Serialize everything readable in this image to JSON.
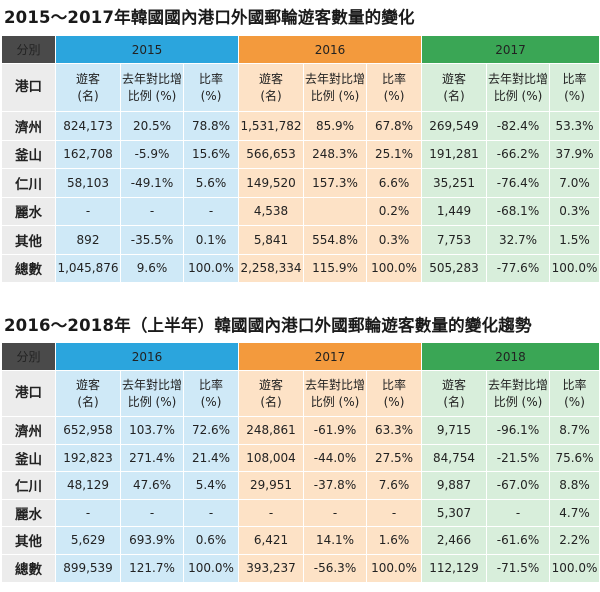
{
  "table1": {
    "title": "2015～2017年韓國國內港口外國郵輪遊客數量的變化",
    "corner": "分別",
    "port_label": "港口",
    "years": [
      "2015",
      "2016",
      "2017"
    ],
    "col_headers": {
      "visitors": "遊客\n(名)",
      "yoy": "去年對比增\n比例 (%)",
      "ratio": "比率\n(%)"
    },
    "rows": [
      {
        "port": "濟州",
        "cells": [
          "824,173",
          "20.5%",
          "78.8%",
          "1,531,782",
          "85.9%",
          "67.8%",
          "269,549",
          "-82.4%",
          "53.3%"
        ]
      },
      {
        "port": "釜山",
        "cells": [
          "162,708",
          "-5.9%",
          "15.6%",
          "566,653",
          "248.3%",
          "25.1%",
          "191,281",
          "-66.2%",
          "37.9%"
        ]
      },
      {
        "port": "仁川",
        "cells": [
          "58,103",
          "-49.1%",
          "5.6%",
          "149,520",
          "157.3%",
          "6.6%",
          "35,251",
          "-76.4%",
          "7.0%"
        ]
      },
      {
        "port": "麗水",
        "cells": [
          "-",
          "-",
          "-",
          "4,538",
          "",
          "0.2%",
          "1,449",
          "-68.1%",
          "0.3%"
        ]
      },
      {
        "port": "其他",
        "cells": [
          "892",
          "-35.5%",
          "0.1%",
          "5,841",
          "554.8%",
          "0.3%",
          "7,753",
          "32.7%",
          "1.5%"
        ]
      },
      {
        "port": "總數",
        "cells": [
          "1,045,876",
          "9.6%",
          "100.0%",
          "2,258,334",
          "115.9%",
          "100.0%",
          "505,283",
          "-77.6%",
          "100.0%"
        ]
      }
    ]
  },
  "table2": {
    "title": "2016～2018年（上半年）韓國國內港口外國郵輪遊客數量的變化趨勢",
    "corner": "分別",
    "port_label": "港口",
    "years": [
      "2016",
      "2017",
      "2018"
    ],
    "col_headers": {
      "visitors": "遊客\n(名)",
      "yoy": "去年對比增\n比例 (%)",
      "ratio": "比率\n(%)"
    },
    "rows": [
      {
        "port": "濟州",
        "cells": [
          "652,958",
          "103.7%",
          "72.6%",
          "248,861",
          "-61.9%",
          "63.3%",
          "9,715",
          "-96.1%",
          "8.7%"
        ]
      },
      {
        "port": "釜山",
        "cells": [
          "192,823",
          "271.4%",
          "21.4%",
          "108,004",
          "-44.0%",
          "27.5%",
          "84,754",
          "-21.5%",
          "75.6%"
        ]
      },
      {
        "port": "仁川",
        "cells": [
          "48,129",
          "47.6%",
          "5.4%",
          "29,951",
          "-37.8%",
          "7.6%",
          "9,887",
          "-67.0%",
          "8.8%"
        ]
      },
      {
        "port": "麗水",
        "cells": [
          "-",
          "-",
          "-",
          "-",
          "-",
          "-",
          "5,307",
          "-",
          "4.7%"
        ]
      },
      {
        "port": "其他",
        "cells": [
          "5,629",
          "693.9%",
          "0.6%",
          "6,421",
          "14.1%",
          "1.6%",
          "2,466",
          "-61.6%",
          "2.2%"
        ]
      },
      {
        "port": "總數",
        "cells": [
          "899,539",
          "121.7%",
          "100.0%",
          "393,237",
          "-56.3%",
          "100.0%",
          "112,129",
          "-71.5%",
          "100.0%"
        ]
      }
    ]
  },
  "colors": {
    "header_dark": "#4a4a4a",
    "year1_header": "#2ba5dd",
    "year2_header": "#f39a3d",
    "year3_header": "#3aa655",
    "year1_bg": "#cfe9f7",
    "year2_bg": "#fde2c6",
    "year3_bg": "#d8eedb",
    "label_bg": "#ececec"
  }
}
